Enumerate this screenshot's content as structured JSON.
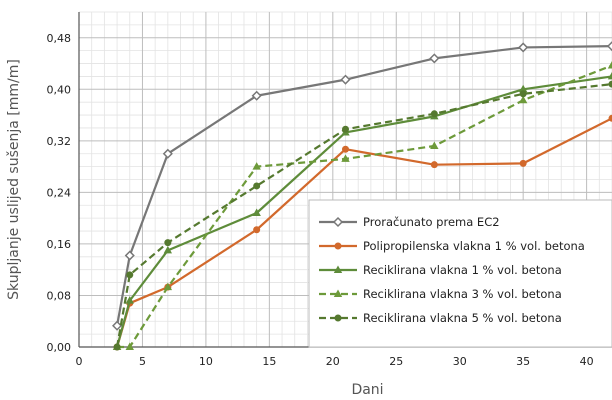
{
  "chart_data": {
    "type": "line",
    "xlabel": "Dani",
    "ylabel": "Skupljanje uslijed sušenja [mm/m]",
    "xlim": [
      0,
      42
    ],
    "ylim": [
      0,
      0.52
    ],
    "xticks": [
      0,
      5,
      10,
      15,
      20,
      25,
      30,
      35,
      40
    ],
    "xtick_labels": [
      "0",
      "5",
      "10",
      "15",
      "20",
      "25",
      "30",
      "35",
      "40"
    ],
    "yticks": [
      0,
      0.08,
      0.16,
      0.24,
      0.32,
      0.4,
      0.48
    ],
    "ytick_labels": [
      "0,00",
      "0,08",
      "0,16",
      "0,24",
      "0,32",
      "0,40",
      "0,48"
    ],
    "grid": true,
    "legend_position": "bottom-right",
    "series": [
      {
        "name": "Proračunato prema EC2",
        "color": "#777777",
        "dash": "solid",
        "marker": "diamond-open",
        "x": [
          3,
          4,
          7,
          14,
          21,
          28,
          35,
          42
        ],
        "y": [
          0.033,
          0.142,
          0.3,
          0.39,
          0.415,
          0.448,
          0.465,
          0.467
        ]
      },
      {
        "name": "Polipropilenska vlakna 1 % vol. betona",
        "color": "#d2692c",
        "dash": "solid",
        "marker": "circle",
        "x": [
          3,
          4,
          7,
          14,
          21,
          28,
          35,
          42
        ],
        "y": [
          0.0,
          0.068,
          0.093,
          0.182,
          0.307,
          0.283,
          0.285,
          0.355
        ]
      },
      {
        "name": "Reciklirana vlakna 1 % vol. betona",
        "color": "#5e8c3a",
        "dash": "solid",
        "marker": "triangle",
        "x": [
          3,
          4,
          7,
          14,
          21,
          28,
          35,
          42
        ],
        "y": [
          0.0,
          0.072,
          0.15,
          0.208,
          0.333,
          0.358,
          0.4,
          0.42
        ]
      },
      {
        "name": "Reciklirana vlakna 3 % vol. betona",
        "color": "#6d9a3a",
        "dash": "dashed",
        "marker": "triangle",
        "x": [
          3,
          4,
          7,
          14,
          21,
          28,
          35,
          42
        ],
        "y": [
          0.0,
          0.0,
          0.093,
          0.28,
          0.292,
          0.312,
          0.383,
          0.437
        ]
      },
      {
        "name": "Reciklirana vlakna 5 % vol. betona",
        "color": "#55792f",
        "dash": "dashed",
        "marker": "circle",
        "x": [
          3,
          4,
          7,
          14,
          21,
          28,
          35,
          42
        ],
        "y": [
          0.0,
          0.112,
          0.162,
          0.25,
          0.338,
          0.362,
          0.393,
          0.408
        ]
      }
    ]
  }
}
